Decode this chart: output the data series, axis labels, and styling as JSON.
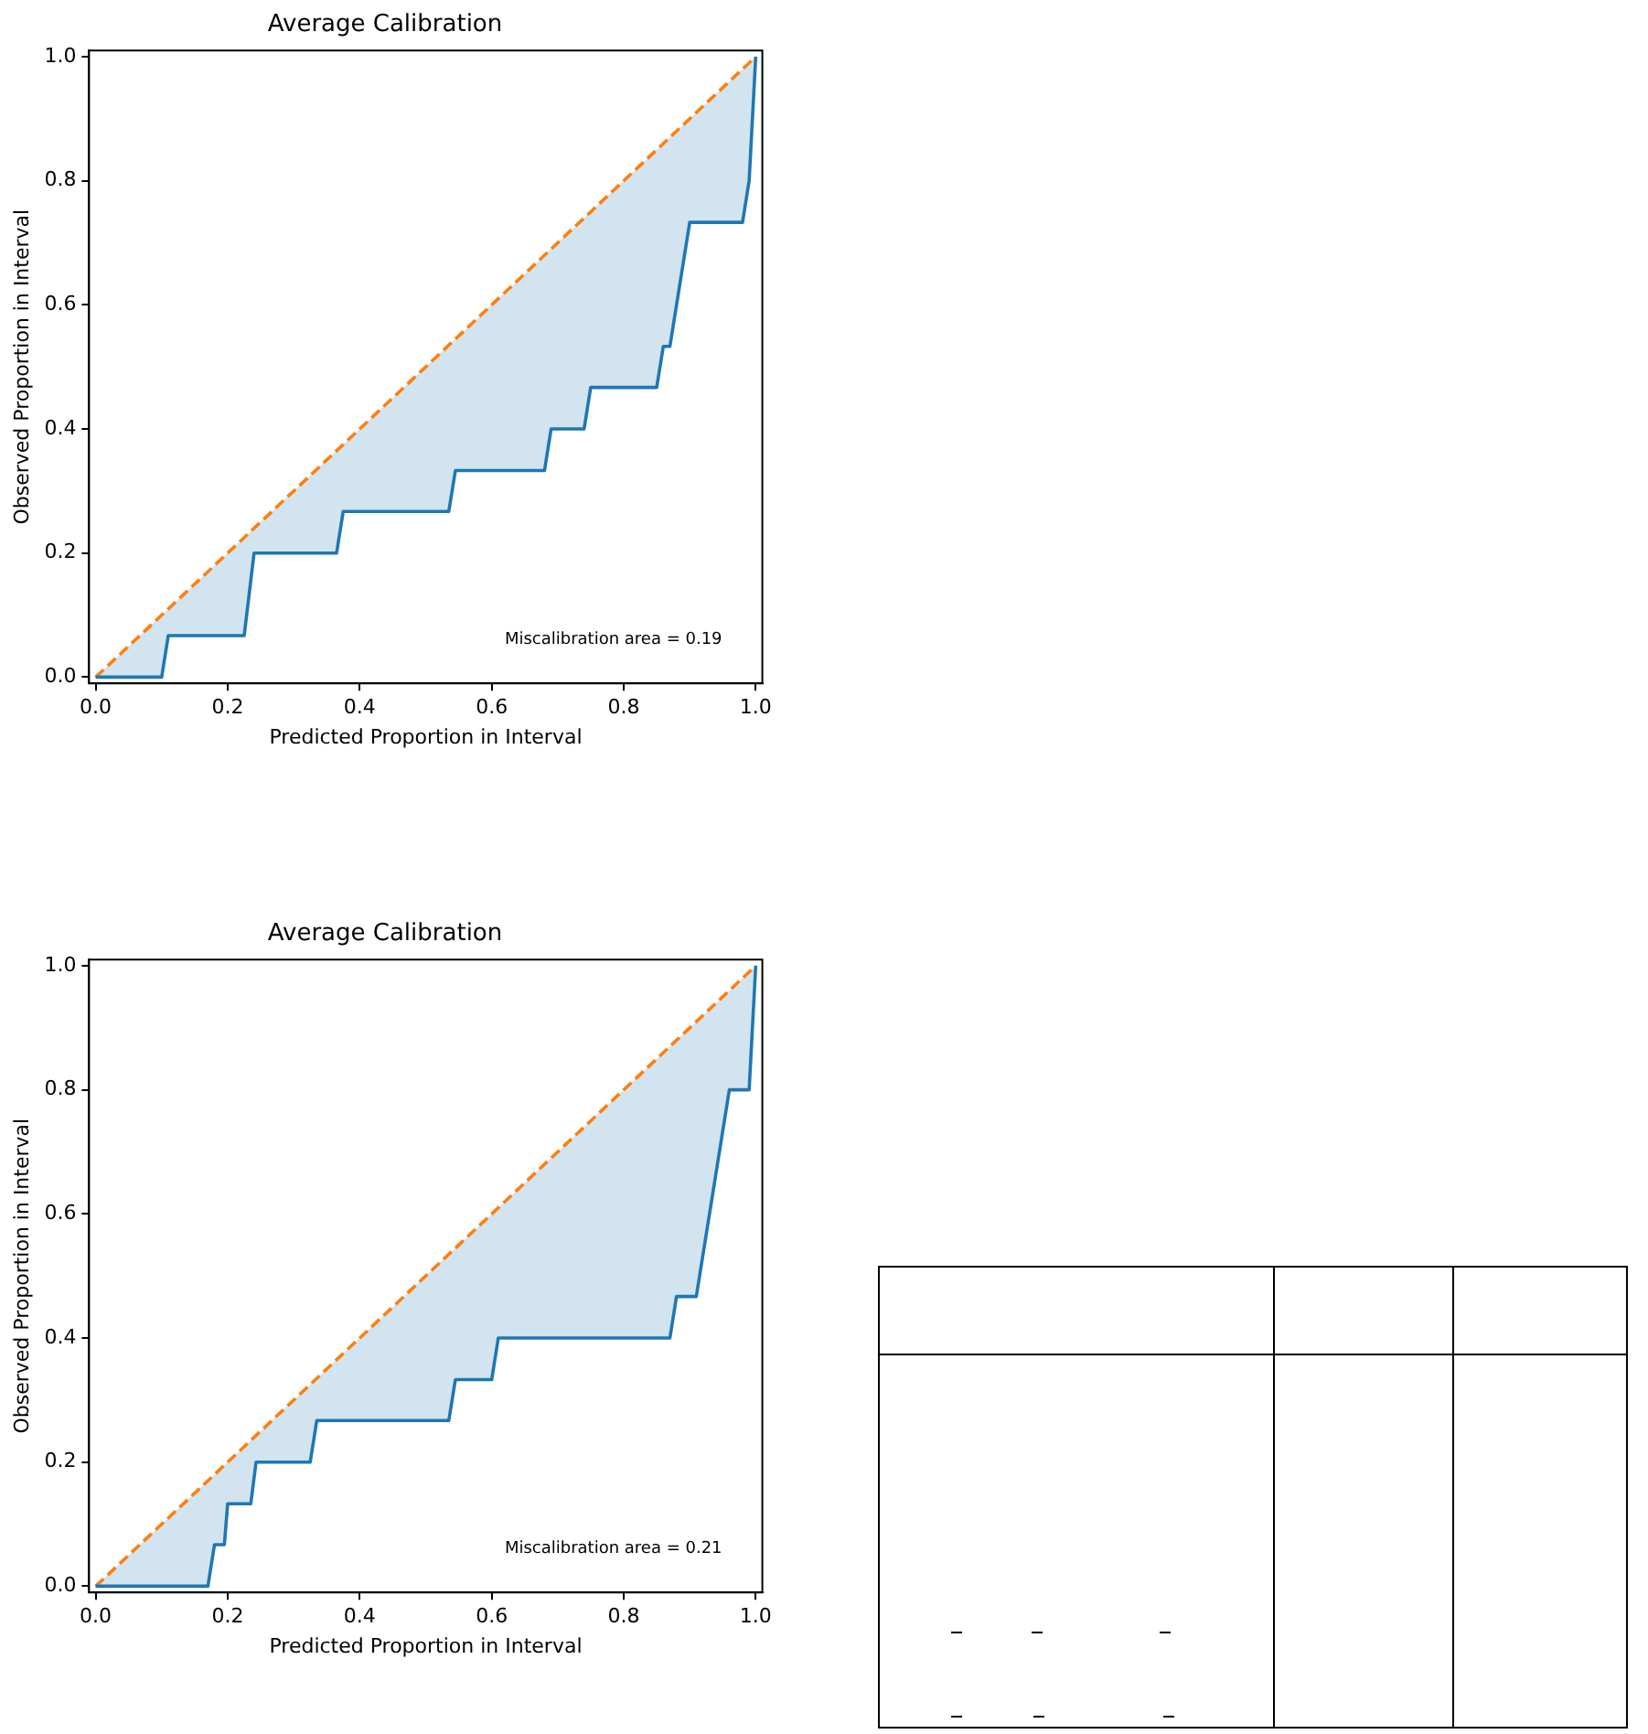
{
  "chart_data": [
    {
      "type": "line",
      "title": "Average Calibration",
      "xlabel": "Predicted Proportion in Interval",
      "ylabel": "Observed Proportion in Interval",
      "annotations": [
        "Miscalibration area = 0.19"
      ],
      "xlim": [
        -0.01,
        1.01
      ],
      "ylim": [
        -0.01,
        1.01
      ],
      "xticks": [
        {
          "value": 0,
          "label": "0.0"
        },
        {
          "value": 0.2,
          "label": "0.2"
        },
        {
          "value": 0.4,
          "label": "0.4"
        },
        {
          "value": 0.6,
          "label": "0.6"
        },
        {
          "value": 0.8,
          "label": "0.8"
        },
        {
          "value": 1,
          "label": "1.0"
        }
      ],
      "yticks": [
        {
          "value": 0,
          "label": "0.0"
        },
        {
          "value": 0.2,
          "label": "0.2"
        },
        {
          "value": 0.4,
          "label": "0.4"
        },
        {
          "value": 0.6,
          "label": "0.6"
        },
        {
          "value": 0.8,
          "label": "0.8"
        },
        {
          "value": 1,
          "label": "1.0"
        }
      ],
      "grid": false,
      "legend": false,
      "marker": "none",
      "series": [
        {
          "type": "line",
          "color": "#1f77b4",
          "line_style": "solid",
          "x": [
            0,
            0.1,
            0.11,
            0.225,
            0.24,
            0.365,
            0.375,
            0.535,
            0.545,
            0.68,
            0.69,
            0.74,
            0.75,
            0.85,
            0.86,
            0.87,
            0.9,
            0.98,
            0.99,
            1
          ],
          "values": [
            0,
            0,
            0.067,
            0.067,
            0.2,
            0.2,
            0.267,
            0.267,
            0.333,
            0.333,
            0.4,
            0.4,
            0.467,
            0.467,
            0.533,
            0.533,
            0.733,
            0.733,
            0.8,
            1
          ]
        },
        {
          "type": "line",
          "color": "#ff7f0e",
          "line_style": "dashed",
          "x": [
            0,
            1
          ],
          "values": [
            0,
            1
          ]
        }
      ]
    },
    {
      "type": "line",
      "title": "Average Calibration",
      "xlabel": "Predicted Proportion in Interval",
      "ylabel": "Observed Proportion in Interval",
      "annotations": [
        "Miscalibration area = 0.21"
      ],
      "xlim": [
        -0.01,
        1.01
      ],
      "ylim": [
        -0.01,
        1.01
      ],
      "xticks": [
        {
          "value": 0,
          "label": "0.0"
        },
        {
          "value": 0.2,
          "label": "0.2"
        },
        {
          "value": 0.4,
          "label": "0.4"
        },
        {
          "value": 0.6,
          "label": "0.6"
        },
        {
          "value": 0.8,
          "label": "0.8"
        },
        {
          "value": 1,
          "label": "1.0"
        }
      ],
      "yticks": [
        {
          "value": 0,
          "label": "0.0"
        },
        {
          "value": 0.2,
          "label": "0.2"
        },
        {
          "value": 0.4,
          "label": "0.4"
        },
        {
          "value": 0.6,
          "label": "0.6"
        },
        {
          "value": 0.8,
          "label": "0.8"
        },
        {
          "value": 1,
          "label": "1.0"
        }
      ],
      "grid": false,
      "legend": false,
      "marker": "none",
      "series": [
        {
          "type": "line",
          "color": "#1f77b4",
          "line_style": "solid",
          "x": [
            0,
            0.17,
            0.18,
            0.195,
            0.2,
            0.235,
            0.243,
            0.325,
            0.335,
            0.535,
            0.545,
            0.6,
            0.61,
            0.87,
            0.88,
            0.91,
            0.96,
            0.99,
            1
          ],
          "values": [
            0,
            0,
            0.067,
            0.067,
            0.133,
            0.133,
            0.2,
            0.2,
            0.267,
            0.267,
            0.333,
            0.333,
            0.4,
            0.4,
            0.467,
            0.467,
            0.8,
            0.8,
            1
          ]
        },
        {
          "type": "line",
          "color": "#ff7f0e",
          "line_style": "dashed",
          "x": [
            0,
            1
          ],
          "values": [
            0,
            1
          ]
        }
      ]
    }
  ]
}
